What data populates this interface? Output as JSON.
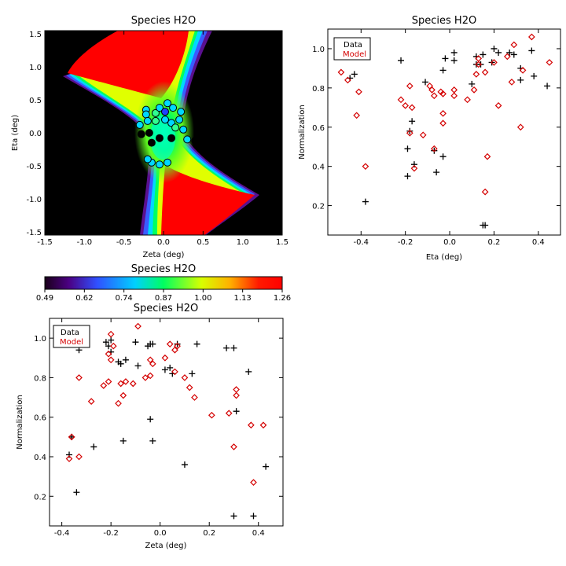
{
  "colors": {
    "data": "#000000",
    "model": "#d40000",
    "background": "#ffffff",
    "field": "#000000"
  },
  "colorbar": {
    "title": "Species H2O",
    "ticks": [
      "0.49",
      "0.62",
      "0.74",
      "0.87",
      "1.00",
      "1.13",
      "1.26"
    ],
    "range": [
      0.49,
      1.26
    ]
  },
  "chart_data": [
    {
      "type": "heatmap",
      "title": "Species H2O",
      "xlabel": "Zeta (deg)",
      "ylabel": "Eta (deg)",
      "xlim": [
        -1.5,
        1.5
      ],
      "ylim": [
        -1.55,
        1.55
      ],
      "xticks": [
        "-1.5",
        "-1.0",
        "-0.5",
        "0.0",
        "0.5",
        "1.0",
        "1.5"
      ],
      "yticks": [
        "-1.5",
        "-1.0",
        "-0.5",
        "0.0",
        "0.5",
        "1.0",
        "1.5"
      ],
      "colormap": "rainbow",
      "points": [
        {
          "x": -0.22,
          "y": 0.35,
          "v": 0.85
        },
        {
          "x": -0.22,
          "y": 0.28,
          "v": 0.8
        },
        {
          "x": -0.1,
          "y": 0.3,
          "v": 0.9
        },
        {
          "x": -0.05,
          "y": 0.38,
          "v": 0.8
        },
        {
          "x": 0.05,
          "y": 0.45,
          "v": 0.85
        },
        {
          "x": 0.02,
          "y": 0.32,
          "v": 0.75
        },
        {
          "x": 0.12,
          "y": 0.38,
          "v": 0.8
        },
        {
          "x": 0.22,
          "y": 0.32,
          "v": 0.85
        },
        {
          "x": -0.3,
          "y": 0.12,
          "v": 0.8
        },
        {
          "x": -0.2,
          "y": 0.18,
          "v": 0.85
        },
        {
          "x": -0.1,
          "y": 0.18,
          "v": 0.9
        },
        {
          "x": 0.02,
          "y": 0.2,
          "v": 0.8
        },
        {
          "x": 0.1,
          "y": 0.15,
          "v": 0.8
        },
        {
          "x": 0.2,
          "y": 0.2,
          "v": 0.85
        },
        {
          "x": 0.15,
          "y": 0.08,
          "v": 0.9
        },
        {
          "x": 0.25,
          "y": 0.05,
          "v": 0.85
        },
        {
          "x": -0.28,
          "y": -0.02,
          "v": 0.5
        },
        {
          "x": -0.18,
          "y": 0.0,
          "v": 0.5
        },
        {
          "x": -0.05,
          "y": -0.08,
          "v": 0.5
        },
        {
          "x": 0.1,
          "y": -0.08,
          "v": 0.5
        },
        {
          "x": -0.15,
          "y": -0.15,
          "v": 0.5
        },
        {
          "x": 0.3,
          "y": -0.1,
          "v": 0.85
        },
        {
          "x": 0.4,
          "y": -0.12,
          "v": 0.5
        },
        {
          "x": -0.15,
          "y": -0.45,
          "v": 0.85
        },
        {
          "x": -0.05,
          "y": -0.48,
          "v": 0.8
        },
        {
          "x": -0.2,
          "y": -0.4,
          "v": 0.85
        },
        {
          "x": 0.05,
          "y": -0.45,
          "v": 0.8
        }
      ]
    },
    {
      "type": "scatter",
      "title": "Species H2O",
      "xlabel": "Eta (deg)",
      "ylabel": "Normalization",
      "xlim": [
        -0.55,
        0.5
      ],
      "ylim": [
        0.05,
        1.1
      ],
      "xticks": [
        -0.4,
        -0.2,
        0.0,
        0.2,
        0.4
      ],
      "yticks": [
        0.2,
        0.4,
        0.6,
        0.8,
        1.0
      ],
      "legend": {
        "position": "top-left",
        "entries": [
          "Data",
          "Model"
        ]
      },
      "series": [
        {
          "name": "Data",
          "marker": "plus",
          "points": [
            [
              -0.46,
              0.98
            ],
            [
              -0.45,
              0.85
            ],
            [
              -0.43,
              0.87
            ],
            [
              -0.38,
              0.22
            ],
            [
              -0.22,
              0.94
            ],
            [
              -0.19,
              0.35
            ],
            [
              -0.19,
              0.49
            ],
            [
              -0.18,
              0.58
            ],
            [
              -0.17,
              0.63
            ],
            [
              -0.16,
              0.41
            ],
            [
              -0.11,
              0.83
            ],
            [
              -0.07,
              0.48
            ],
            [
              -0.06,
              0.37
            ],
            [
              -0.03,
              0.89
            ],
            [
              -0.02,
              0.95
            ],
            [
              -0.03,
              0.45
            ],
            [
              0.02,
              0.94
            ],
            [
              0.02,
              0.98
            ],
            [
              0.1,
              0.82
            ],
            [
              0.12,
              0.96
            ],
            [
              0.12,
              0.92
            ],
            [
              0.14,
              0.92
            ],
            [
              0.15,
              0.97
            ],
            [
              0.15,
              0.1
            ],
            [
              0.16,
              0.1
            ],
            [
              0.19,
              0.93
            ],
            [
              0.2,
              1.0
            ],
            [
              0.22,
              0.98
            ],
            [
              0.27,
              0.98
            ],
            [
              0.29,
              0.97
            ],
            [
              0.32,
              0.84
            ],
            [
              0.32,
              0.9
            ],
            [
              0.37,
              0.99
            ],
            [
              0.38,
              0.86
            ],
            [
              0.44,
              0.81
            ]
          ]
        },
        {
          "name": "Model",
          "marker": "diamond",
          "points": [
            [
              -0.49,
              0.88
            ],
            [
              -0.46,
              0.84
            ],
            [
              -0.42,
              0.66
            ],
            [
              -0.41,
              0.78
            ],
            [
              -0.38,
              0.4
            ],
            [
              -0.22,
              0.74
            ],
            [
              -0.2,
              0.71
            ],
            [
              -0.18,
              0.81
            ],
            [
              -0.18,
              0.57
            ],
            [
              -0.17,
              0.7
            ],
            [
              -0.16,
              0.39
            ],
            [
              -0.12,
              0.56
            ],
            [
              -0.09,
              0.81
            ],
            [
              -0.08,
              0.79
            ],
            [
              -0.07,
              0.49
            ],
            [
              -0.07,
              0.76
            ],
            [
              -0.04,
              0.78
            ],
            [
              -0.03,
              0.77
            ],
            [
              -0.03,
              0.67
            ],
            [
              -0.03,
              0.62
            ],
            [
              0.02,
              0.76
            ],
            [
              0.02,
              0.79
            ],
            [
              0.08,
              0.74
            ],
            [
              0.11,
              0.79
            ],
            [
              0.12,
              0.87
            ],
            [
              0.13,
              0.95
            ],
            [
              0.13,
              0.92
            ],
            [
              0.16,
              0.88
            ],
            [
              0.16,
              0.27
            ],
            [
              0.17,
              0.45
            ],
            [
              0.2,
              0.93
            ],
            [
              0.22,
              0.71
            ],
            [
              0.26,
              0.96
            ],
            [
              0.28,
              0.83
            ],
            [
              0.29,
              1.02
            ],
            [
              0.32,
              0.6
            ],
            [
              0.33,
              0.89
            ],
            [
              0.37,
              1.06
            ],
            [
              0.45,
              0.93
            ]
          ]
        }
      ]
    },
    {
      "type": "scatter",
      "title": "Species H2O",
      "xlabel": "Zeta (deg)",
      "ylabel": "Normalization",
      "xlim": [
        -0.45,
        0.5
      ],
      "ylim": [
        0.05,
        1.1
      ],
      "xticks": [
        -0.4,
        -0.2,
        0.0,
        0.2,
        0.4
      ],
      "yticks": [
        0.2,
        0.4,
        0.6,
        0.8,
        1.0
      ],
      "legend": {
        "position": "top-left",
        "entries": [
          "Data",
          "Model"
        ]
      },
      "series": [
        {
          "name": "Data",
          "marker": "plus",
          "points": [
            [
              -0.37,
              0.41
            ],
            [
              -0.36,
              0.5
            ],
            [
              -0.33,
              0.94
            ],
            [
              -0.34,
              0.22
            ],
            [
              -0.27,
              0.45
            ],
            [
              -0.22,
              0.98
            ],
            [
              -0.21,
              0.96
            ],
            [
              -0.2,
              0.99
            ],
            [
              -0.2,
              0.93
            ],
            [
              -0.17,
              0.88
            ],
            [
              -0.16,
              0.87
            ],
            [
              -0.15,
              0.48
            ],
            [
              -0.14,
              0.89
            ],
            [
              -0.1,
              0.98
            ],
            [
              -0.09,
              0.86
            ],
            [
              -0.05,
              0.96
            ],
            [
              -0.04,
              0.97
            ],
            [
              -0.04,
              0.59
            ],
            [
              -0.03,
              0.97
            ],
            [
              -0.03,
              0.48
            ],
            [
              0.02,
              0.84
            ],
            [
              0.04,
              0.85
            ],
            [
              0.05,
              0.82
            ],
            [
              0.07,
              0.97
            ],
            [
              0.1,
              0.36
            ],
            [
              0.13,
              0.82
            ],
            [
              0.15,
              0.97
            ],
            [
              0.27,
              0.95
            ],
            [
              0.3,
              0.95
            ],
            [
              0.3,
              0.1
            ],
            [
              0.31,
              0.63
            ],
            [
              0.36,
              0.83
            ],
            [
              0.38,
              0.1
            ],
            [
              0.43,
              0.35
            ]
          ]
        },
        {
          "name": "Model",
          "marker": "diamond",
          "points": [
            [
              -0.37,
              0.39
            ],
            [
              -0.36,
              0.5
            ],
            [
              -0.33,
              0.4
            ],
            [
              -0.33,
              0.8
            ],
            [
              -0.28,
              0.68
            ],
            [
              -0.23,
              0.76
            ],
            [
              -0.21,
              0.78
            ],
            [
              -0.21,
              0.92
            ],
            [
              -0.2,
              1.02
            ],
            [
              -0.2,
              0.89
            ],
            [
              -0.19,
              0.96
            ],
            [
              -0.17,
              0.67
            ],
            [
              -0.16,
              0.77
            ],
            [
              -0.15,
              0.71
            ],
            [
              -0.14,
              0.78
            ],
            [
              -0.11,
              0.77
            ],
            [
              -0.09,
              1.06
            ],
            [
              -0.06,
              0.8
            ],
            [
              -0.04,
              0.89
            ],
            [
              -0.04,
              0.81
            ],
            [
              -0.03,
              0.87
            ],
            [
              0.02,
              0.9
            ],
            [
              0.04,
              0.97
            ],
            [
              0.06,
              0.94
            ],
            [
              0.06,
              0.83
            ],
            [
              0.07,
              0.96
            ],
            [
              0.1,
              0.8
            ],
            [
              0.12,
              0.75
            ],
            [
              0.14,
              0.7
            ],
            [
              0.21,
              0.61
            ],
            [
              0.28,
              0.62
            ],
            [
              0.3,
              0.45
            ],
            [
              0.31,
              0.74
            ],
            [
              0.31,
              0.71
            ],
            [
              0.37,
              0.56
            ],
            [
              0.38,
              0.27
            ],
            [
              0.42,
              0.56
            ]
          ]
        }
      ]
    }
  ]
}
